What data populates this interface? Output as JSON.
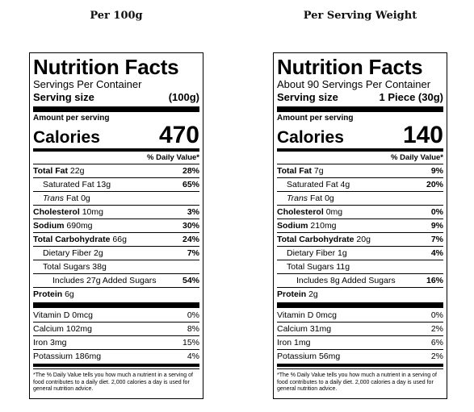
{
  "headings": {
    "left": "Per 100g",
    "right": "Per Serving Weight"
  },
  "common": {
    "title": "Nutrition Facts",
    "serving_size_label": "Serving size",
    "amount_per_serving": "Amount per serving",
    "calories_label": "Calories",
    "daily_value_header": "% Daily Value*",
    "total_fat": "Total Fat",
    "saturated_fat": "Saturated Fat",
    "trans_word": "Trans",
    "trans_rest": "Fat",
    "cholesterol": "Cholesterol",
    "sodium": "Sodium",
    "total_carb": "Total Carbohydrate",
    "fiber": "Dietary Fiber",
    "sugars": "Total Sugars",
    "includes": "Includes",
    "added_sugars": "Added Sugars",
    "protein": "Protein",
    "vitamin_d": "Vitamin D",
    "calcium": "Calcium",
    "iron": "Iron",
    "potassium": "Potassium",
    "footnote": "*The % Daily Value tells you how much a nutrient in a serving of food contributes to a daily diet. 2,000 calories a day is used for general nutrition advice."
  },
  "left": {
    "servings": "Servings Per Container",
    "serving_size": "(100g)",
    "calories": "470",
    "total_fat": {
      "amount": "22g",
      "pct": "28%"
    },
    "saturated_fat": {
      "amount": "13g",
      "pct": "65%"
    },
    "trans_fat": {
      "amount": "0g"
    },
    "cholesterol": {
      "amount": "10mg",
      "pct": "3%"
    },
    "sodium": {
      "amount": "690mg",
      "pct": "30%"
    },
    "total_carb": {
      "amount": "66g",
      "pct": "24%"
    },
    "fiber": {
      "amount": "2g",
      "pct": "7%"
    },
    "sugars": {
      "amount": "38g"
    },
    "added_sugars": {
      "amount": "27g",
      "pct": "54%"
    },
    "protein": {
      "amount": "6g"
    },
    "vitamin_d": {
      "amount": "0mcg",
      "pct": "0%"
    },
    "calcium": {
      "amount": "102mg",
      "pct": "8%"
    },
    "iron": {
      "amount": "3mg",
      "pct": "15%"
    },
    "potassium": {
      "amount": "186mg",
      "pct": "4%"
    }
  },
  "right": {
    "servings": "About 90 Servings Per Container",
    "serving_size": "1 Piece (30g)",
    "calories": "140",
    "total_fat": {
      "amount": "7g",
      "pct": "9%"
    },
    "saturated_fat": {
      "amount": "4g",
      "pct": "20%"
    },
    "trans_fat": {
      "amount": "0g"
    },
    "cholesterol": {
      "amount": "0mg",
      "pct": "0%"
    },
    "sodium": {
      "amount": "210mg",
      "pct": "9%"
    },
    "total_carb": {
      "amount": "20g",
      "pct": "7%"
    },
    "fiber": {
      "amount": "1g",
      "pct": "4%"
    },
    "sugars": {
      "amount": "11g"
    },
    "added_sugars": {
      "amount": "8g",
      "pct": "16%"
    },
    "protein": {
      "amount": "2g"
    },
    "vitamin_d": {
      "amount": "0mcg",
      "pct": "0%"
    },
    "calcium": {
      "amount": "31mg",
      "pct": "2%"
    },
    "iron": {
      "amount": "1mg",
      "pct": "6%"
    },
    "potassium": {
      "amount": "56mg",
      "pct": "2%"
    }
  }
}
